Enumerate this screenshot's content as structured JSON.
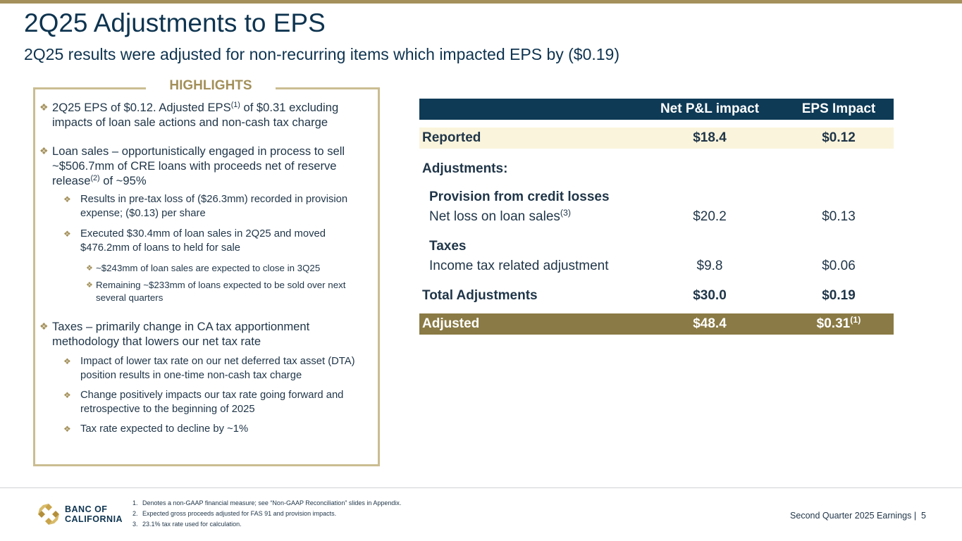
{
  "slide": {
    "title": "2Q25 Adjustments to EPS",
    "subtitle": "2Q25 results were adjusted for non-recurring items which impacted EPS by ($0.19)"
  },
  "highlights": {
    "heading": "HIGHLIGHTS",
    "bullet_icon": "diamond-cluster-icon",
    "b1": {
      "pre": "2Q25 EPS of $0.12. Adjusted EPS",
      "sup": "(1)",
      "post": " of $0.31 excluding impacts of loan sale actions and non-cash tax charge"
    },
    "b2": {
      "pre": "Loan sales – opportunistically engaged in process to sell ~$506.7mm of CRE loans with proceeds net of reserve release",
      "sup": "(2)",
      "post": " of ~95%"
    },
    "b2a": "Results in pre-tax loss of ($26.3mm) recorded in provision expense; ($0.13) per share",
    "b2b": "Executed $30.4mm of loan sales in 2Q25 and moved $476.2mm of loans to held for sale",
    "b2b1": "~$243mm of loan sales are expected to close in 3Q25",
    "b2b2": "Remaining ~$233mm of loans expected to be sold over next several quarters",
    "b3": "Taxes – primarily change in CA tax apportionment methodology that lowers our net tax rate",
    "b3a": "Impact of lower tax rate on our net deferred tax asset (DTA) position results in one-time non-cash tax charge",
    "b3b": "Change positively impacts our tax rate going forward and retrospective to the beginning of 2025",
    "b3c": "Tax rate expected to decline by ~1%"
  },
  "table": {
    "col_pl": "Net P&L impact",
    "col_eps": "EPS Impact",
    "reported": {
      "label": "Reported",
      "pl": "$18.4",
      "eps": "$0.12"
    },
    "adjustments_label": "Adjustments:",
    "provision": {
      "heading": "Provision from credit losses",
      "label": "Net loss on loan sales",
      "sup": "(3)",
      "pl": "$20.2",
      "eps": "$0.13"
    },
    "taxes": {
      "heading": "Taxes",
      "label": "Income tax related adjustment",
      "pl": "$9.8",
      "eps": "$0.06"
    },
    "total": {
      "label": "Total Adjustments",
      "pl": "$30.0",
      "eps": "$0.19"
    },
    "adjusted": {
      "label": "Adjusted",
      "pl": "$48.4",
      "eps": "$0.31",
      "sup": "(1)"
    }
  },
  "footer": {
    "logo_icon": "banc-of-california-logo-icon",
    "logo_line1": "BANC OF",
    "logo_line2": "CALIFORNIA",
    "notes": [
      {
        "num": "1.",
        "text": "Denotes a non-GAAP financial measure; see “Non-GAAP Reconciliation” slides in Appendix."
      },
      {
        "num": "2.",
        "text": "Expected gross proceeds adjusted for FAS 91 and provision impacts."
      },
      {
        "num": "3.",
        "text": "23.1% tax rate used for calculation."
      }
    ],
    "page_label": "Second Quarter 2025 Earnings |",
    "page_number": "5"
  },
  "colors": {
    "navy": "#0e3a56",
    "gold": "#a3905a",
    "cream": "#fbf4dc",
    "olive": "#8a7a45"
  }
}
